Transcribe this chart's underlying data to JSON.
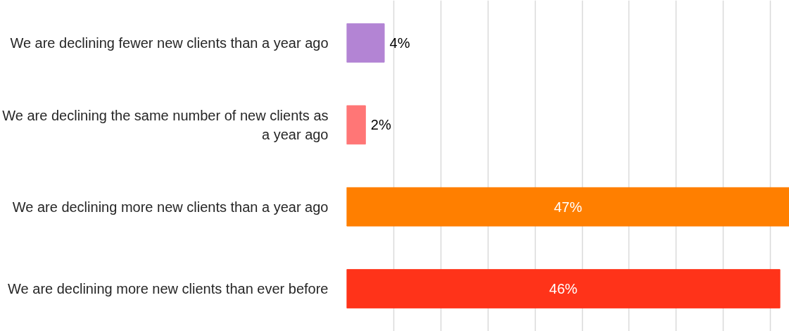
{
  "chart_data": {
    "type": "bar",
    "orientation": "horizontal",
    "categories": [
      "We are declining fewer new clients than a year ago",
      "We are declining the same number of new clients as a year ago",
      "We are declining more new clients than a year ago",
      "We are declining more new clients than ever before"
    ],
    "values": [
      4,
      2,
      47,
      46
    ],
    "colors": [
      "#b384d4",
      "#ff7676",
      "#ff7f00",
      "#ff3319"
    ],
    "value_labels": [
      "4%",
      "2%",
      "47%",
      "46%"
    ],
    "xlim": [
      0,
      47
    ],
    "xticks": [
      {
        "value": 5,
        "label": null
      },
      {
        "value": 10,
        "label": null
      },
      {
        "value": 15,
        "label": null
      },
      {
        "value": 20,
        "label": null
      },
      {
        "value": 25,
        "label": null
      },
      {
        "value": 30,
        "label": null
      },
      {
        "value": 35,
        "label": null
      },
      {
        "value": 40,
        "label": null
      },
      {
        "value": 45,
        "label": null
      }
    ],
    "grid": "x",
    "tick_labels": "y"
  }
}
